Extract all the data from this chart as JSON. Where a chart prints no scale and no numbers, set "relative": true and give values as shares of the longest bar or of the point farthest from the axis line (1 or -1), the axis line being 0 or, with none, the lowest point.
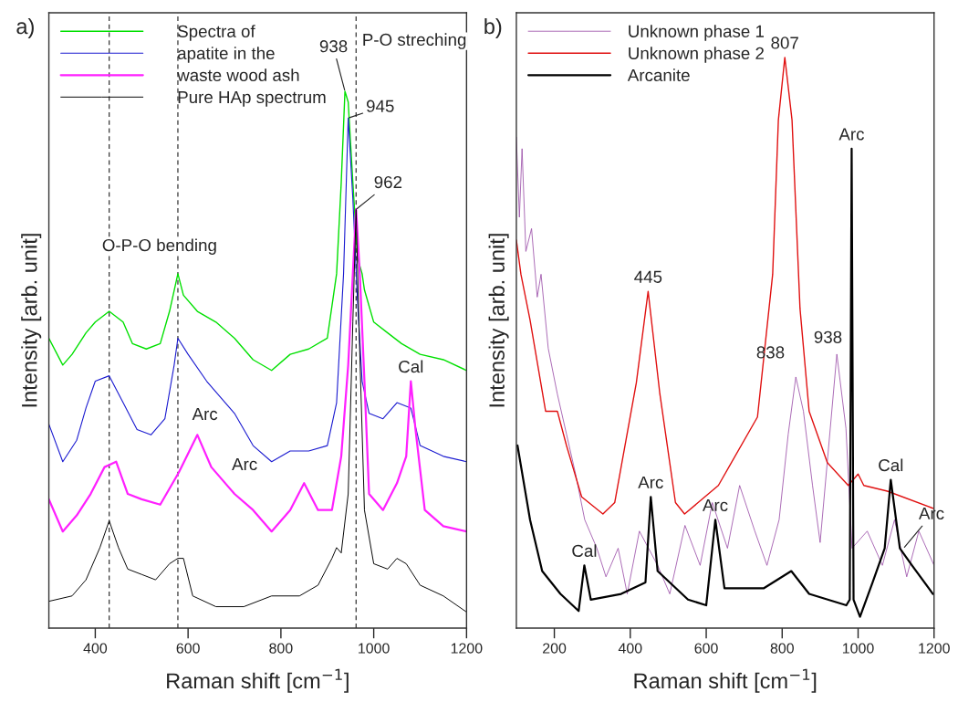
{
  "chart_data": [
    {
      "type": "line",
      "relative": true,
      "xlabel": "Raman shift [cm$^{−1}$]",
      "ylabel": "Intensity [arb. unit]",
      "xlim": [
        300,
        1200
      ],
      "xticks": [
        400,
        600,
        800,
        1000,
        1200
      ],
      "grid": false,
      "legend": "top left",
      "series": [
        {
          "name": "Spectra of",
          "color": "#00e000",
          "x": [
            300,
            330,
            350,
            380,
            400,
            430,
            460,
            480,
            510,
            540,
            560,
            578,
            590,
            620,
            660,
            700,
            740,
            780,
            820,
            860,
            900,
            920,
            930,
            938,
            945,
            955,
            965,
            975,
            980,
            1000,
            1030,
            1060,
            1100,
            1150,
            1200
          ],
          "values": [
            0.54,
            0.49,
            0.51,
            0.55,
            0.57,
            0.59,
            0.57,
            0.53,
            0.52,
            0.53,
            0.59,
            0.66,
            0.62,
            0.59,
            0.57,
            0.54,
            0.5,
            0.48,
            0.51,
            0.52,
            0.54,
            0.66,
            0.83,
            1.0,
            0.98,
            0.83,
            0.69,
            0.66,
            0.63,
            0.57,
            0.55,
            0.53,
            0.51,
            0.5,
            0.48
          ]
        },
        {
          "name": "apatite in the",
          "color": "#1a1ad0",
          "x": [
            300,
            330,
            360,
            380,
            400,
            430,
            460,
            490,
            520,
            550,
            570,
            578,
            600,
            640,
            680,
            700,
            740,
            780,
            820,
            860,
            900,
            920,
            935,
            945,
            955,
            965,
            975,
            990,
            1020,
            1050,
            1080,
            1100,
            1150,
            1200
          ],
          "values": [
            0.38,
            0.31,
            0.35,
            0.41,
            0.46,
            0.47,
            0.42,
            0.37,
            0.36,
            0.39,
            0.49,
            0.54,
            0.51,
            0.46,
            0.42,
            0.4,
            0.34,
            0.31,
            0.33,
            0.33,
            0.34,
            0.42,
            0.66,
            0.95,
            0.8,
            0.61,
            0.46,
            0.4,
            0.39,
            0.42,
            0.41,
            0.34,
            0.32,
            0.31
          ]
        },
        {
          "name": "waste wood ash",
          "color": "#ff20ff",
          "x": [
            300,
            330,
            360,
            390,
            420,
            445,
            470,
            500,
            540,
            580,
            620,
            650,
            700,
            740,
            780,
            820,
            850,
            880,
            910,
            930,
            945,
            955,
            962,
            970,
            980,
            990,
            1020,
            1050,
            1070,
            1080,
            1090,
            1110,
            1150,
            1200
          ],
          "values": [
            0.24,
            0.18,
            0.21,
            0.25,
            0.3,
            0.31,
            0.25,
            0.24,
            0.23,
            0.29,
            0.36,
            0.3,
            0.25,
            0.22,
            0.18,
            0.22,
            0.27,
            0.22,
            0.22,
            0.32,
            0.49,
            0.66,
            0.78,
            0.66,
            0.46,
            0.25,
            0.22,
            0.27,
            0.32,
            0.46,
            0.37,
            0.22,
            0.19,
            0.18
          ]
        },
        {
          "name": "Pure HAp spectrum",
          "color": "#000000",
          "x": [
            300,
            350,
            380,
            410,
            430,
            450,
            470,
            500,
            530,
            560,
            578,
            590,
            610,
            660,
            720,
            780,
            840,
            880,
            910,
            920,
            930,
            945,
            955,
            962,
            968,
            980,
            1000,
            1030,
            1050,
            1070,
            1100,
            1150,
            1200
          ],
          "values": [
            0.05,
            0.06,
            0.09,
            0.15,
            0.2,
            0.15,
            0.11,
            0.1,
            0.09,
            0.12,
            0.13,
            0.13,
            0.06,
            0.04,
            0.04,
            0.06,
            0.06,
            0.08,
            0.13,
            0.15,
            0.14,
            0.25,
            0.57,
            0.78,
            0.57,
            0.22,
            0.12,
            0.11,
            0.13,
            0.12,
            0.08,
            0.06,
            0.03
          ]
        }
      ],
      "ref_lines": [
        {
          "axis": "x",
          "value": 430,
          "color": "#333333",
          "line_style": "dashed"
        },
        {
          "axis": "x",
          "value": 578,
          "color": "#333333",
          "line_style": "dashed"
        },
        {
          "axis": "x",
          "value": 962,
          "color": "#333333",
          "line_style": "dashed"
        }
      ],
      "annotations": [
        {
          "text": "938",
          "x": 938,
          "y": 1.0
        },
        {
          "text": "945",
          "x": 945,
          "y": 0.95
        },
        {
          "text": "962",
          "x": 962,
          "y": 0.78
        },
        {
          "text": "Cal",
          "x": 1080,
          "y": 0.46
        },
        {
          "text": "Arc",
          "x": 620,
          "y": 0.36
        },
        {
          "text": "Arc",
          "x": 700,
          "y": 0.25
        },
        "O-P-O bending",
        "P-O streching",
        "a)"
      ]
    },
    {
      "type": "line",
      "relative": true,
      "xlabel": "Raman shift [cm$^{−1}$]",
      "ylabel": "Intensity [arb. unit]",
      "xlim": [
        100,
        1200
      ],
      "xticks": [
        200,
        400,
        600,
        800,
        1000,
        1200
      ],
      "grid": false,
      "legend": "top left",
      "series": [
        {
          "name": "Unknown phase 1",
          "color": "#9b4fa8",
          "x": [
            100,
            108,
            115,
            125,
            140,
            155,
            165,
            184,
            208,
            232,
            256,
            280,
            312,
            336,
            368,
            392,
            424,
            472,
            504,
            544,
            584,
            616,
            656,
            688,
            728,
            760,
            792,
            816,
            836,
            856,
            880,
            900,
            920,
            944,
            968,
            984,
            1024,
            1064,
            1096,
            1128,
            1160,
            1200
          ],
          "values": [
            0.86,
            0.72,
            0.84,
            0.66,
            0.7,
            0.58,
            0.62,
            0.49,
            0.41,
            0.34,
            0.27,
            0.19,
            0.14,
            0.09,
            0.14,
            0.06,
            0.17,
            0.11,
            0.06,
            0.18,
            0.11,
            0.22,
            0.14,
            0.25,
            0.17,
            0.11,
            0.19,
            0.34,
            0.44,
            0.38,
            0.25,
            0.15,
            0.3,
            0.48,
            0.35,
            0.14,
            0.17,
            0.11,
            0.19,
            0.09,
            0.17,
            0.11
          ]
        },
        {
          "name": "Unknown phase 2",
          "color": "#e01010",
          "x": [
            100,
            112,
            136,
            177,
            208,
            232,
            272,
            328,
            359,
            416,
            447,
            478,
            519,
            543,
            632,
            735,
            775,
            790,
            807,
            826,
            847,
            871,
            919,
            974,
            1000,
            1015,
            1077,
            1197
          ],
          "values": [
            0.68,
            0.62,
            0.54,
            0.38,
            0.38,
            0.32,
            0.23,
            0.2,
            0.22,
            0.43,
            0.59,
            0.41,
            0.22,
            0.2,
            0.25,
            0.37,
            0.62,
            0.89,
            1.0,
            0.89,
            0.56,
            0.38,
            0.29,
            0.25,
            0.27,
            0.25,
            0.24,
            0.21
          ]
        },
        {
          "name": "Arcanite",
          "color": "#000000",
          "x": [
            103,
            136,
            168,
            216,
            264,
            279,
            296,
            376,
            440,
            454,
            472,
            552,
            600,
            624,
            648,
            752,
            824,
            871,
            969,
            978,
            983,
            988,
            1005,
            1038,
            1070,
            1086,
            1110,
            1142,
            1197
          ],
          "values": [
            0.32,
            0.19,
            0.1,
            0.06,
            0.03,
            0.11,
            0.05,
            0.06,
            0.08,
            0.23,
            0.1,
            0.05,
            0.04,
            0.19,
            0.07,
            0.07,
            0.1,
            0.06,
            0.04,
            0.05,
            0.84,
            0.05,
            0.02,
            0.08,
            0.14,
            0.26,
            0.14,
            0.11,
            0.06
          ]
        }
      ],
      "annotations": [
        {
          "text": "807",
          "x": 807,
          "y": 1.0
        },
        {
          "text": "445",
          "x": 447,
          "y": 0.59
        },
        {
          "text": "Arc",
          "x": 983,
          "y": 0.84
        },
        {
          "text": "838",
          "x": 836,
          "y": 0.44
        },
        {
          "text": "938",
          "x": 944,
          "y": 0.48
        },
        {
          "text": "Cal",
          "x": 279,
          "y": 0.11
        },
        {
          "text": "Arc",
          "x": 454,
          "y": 0.23
        },
        {
          "text": "Arc",
          "x": 624,
          "y": 0.19
        },
        {
          "text": "Cal",
          "x": 1086,
          "y": 0.26
        },
        {
          "text": "Arc",
          "x": 1120,
          "y": 0.14
        },
        "b)"
      ]
    }
  ]
}
